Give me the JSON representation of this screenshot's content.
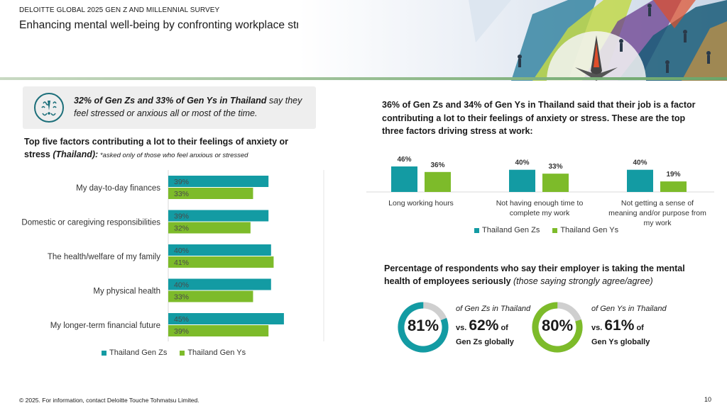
{
  "header": {
    "survey_label": "DELOITTE GLOBAL 2025 GEN Z AND MILLENNIAL SURVEY",
    "title": "Enhancing mental well-being by confronting workplace stress"
  },
  "callout": {
    "bold": "32% of Gen Zs and 33% of Gen Ys in Thailand",
    "rest": " say they feel stressed or anxious all or most of the time."
  },
  "left_heading": {
    "main": "Top five factors contributing a lot to their feelings of anxiety or stress ",
    "italic": "(Thailand):",
    "note": " *asked only of those who feel anxious or stressed"
  },
  "right_heading": "36% of Gen Zs and 34% of Gen Ys in Thailand said that their job is a factor contributing a lot to their feelings of anxiety or stress. These are the top three factors driving stress at work:",
  "employer_heading": {
    "main": "Percentage of respondents who say their employer is taking the mental health of employees seriously ",
    "italic": "(those saying strongly agree/agree)"
  },
  "colors": {
    "gen_z": "#139ba3",
    "gen_y": "#7dbb2a",
    "track": "#cfcfcf",
    "rule": "#8fb98a"
  },
  "icons": {
    "callout": "anxious-head-icon"
  },
  "chart_data": [
    {
      "type": "bar",
      "orientation": "horizontal",
      "categories": [
        "My day-to-day finances",
        "Domestic or caregiving responsibilities",
        "The health/welfare of my family",
        "My physical health",
        "My longer-term financial future"
      ],
      "series": [
        {
          "name": "Thailand Gen Zs",
          "values": [
            39,
            39,
            40,
            40,
            45
          ],
          "labels": [
            "39%",
            "39%",
            "40%",
            "40%",
            "45%"
          ]
        },
        {
          "name": "Thailand Gen Ys",
          "values": [
            33,
            32,
            41,
            33,
            39
          ],
          "labels": [
            "33%",
            "32%",
            "41%",
            "33%",
            "39%"
          ]
        }
      ],
      "xlim": [
        0,
        55
      ],
      "legend": "bottom"
    },
    {
      "type": "bar",
      "orientation": "vertical",
      "categories": [
        "Long working hours",
        "Not having enough time to complete my work",
        "Not getting a sense of meaning and/or purpose from my work"
      ],
      "series": [
        {
          "name": "Thailand Gen Zs",
          "values": [
            46,
            40,
            40
          ],
          "labels": [
            "46%",
            "40%",
            "40%"
          ]
        },
        {
          "name": "Thailand Gen Ys",
          "values": [
            36,
            33,
            19
          ],
          "labels": [
            "36%",
            "33%",
            "19%"
          ]
        }
      ],
      "ylim": [
        0,
        46
      ],
      "legend": "bottom"
    },
    {
      "type": "pie",
      "variant": "donut",
      "values": [
        81,
        19
      ],
      "center_label": "81%",
      "top_text": "of Gen Zs in Thailand",
      "vs_prefix": "vs.",
      "compare_value": "62%",
      "compare_suffix": "of",
      "compare_tail": "Gen Zs globally"
    },
    {
      "type": "pie",
      "variant": "donut",
      "values": [
        80,
        20
      ],
      "center_label": "80%",
      "top_text": "of Gen Ys in Thailand",
      "vs_prefix": "vs.",
      "compare_value": "61%",
      "compare_suffix": "of",
      "compare_tail": "Gen Ys globally"
    }
  ],
  "footer": {
    "copyright": "© 2025. For information, contact Deloitte Touche Tohmatsu Limited.",
    "page_number": "10"
  }
}
